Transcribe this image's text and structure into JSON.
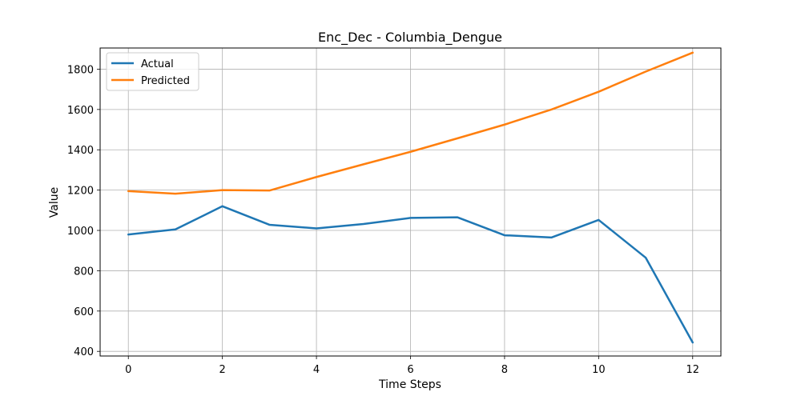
{
  "chart_data": {
    "type": "line",
    "title": "Enc_Dec - Columbia_Dengue",
    "xlabel": "Time Steps",
    "ylabel": "Value",
    "x": [
      0,
      1,
      2,
      3,
      4,
      5,
      6,
      7,
      8,
      9,
      10,
      11,
      12
    ],
    "xticks": [
      "0",
      "2",
      "4",
      "6",
      "8",
      "10",
      "12"
    ],
    "yticks": [
      "400",
      "600",
      "800",
      "1000",
      "1200",
      "1400",
      "1600",
      "1800"
    ],
    "xlim": [
      -0.6,
      12.6
    ],
    "ylim": [
      377,
      1905
    ],
    "grid": true,
    "legend_position": "top-left",
    "series": [
      {
        "name": "Actual",
        "color": "#1f77b4",
        "values": [
          980,
          1005,
          1120,
          1028,
          1010,
          1032,
          1062,
          1065,
          976,
          965,
          1052,
          865,
          444
        ]
      },
      {
        "name": "Predicted",
        "color": "#ff7f0e",
        "values": [
          1195,
          1182,
          1200,
          1198,
          1265,
          1328,
          1390,
          1457,
          1525,
          1600,
          1688,
          1788,
          1882
        ]
      }
    ]
  }
}
